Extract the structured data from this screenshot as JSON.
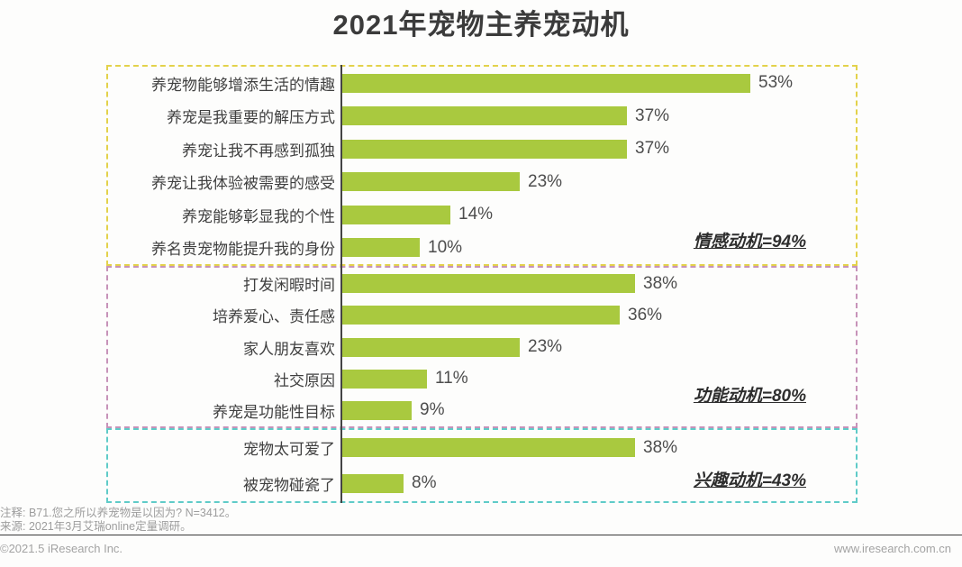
{
  "title": "2021年宠物主养宠动机",
  "chart_data": {
    "type": "bar",
    "orientation": "horizontal",
    "unit": "%",
    "xlim": [
      0,
      60
    ],
    "bar_color": "#a9c93f",
    "axis_color": "#444444",
    "groups": [
      {
        "name": "情感动机",
        "summary": "情感动机=94%",
        "border_color": "#e3d24b",
        "categories": [
          "养宠物能够增添生活的情趣",
          "养宠是我重要的解压方式",
          "养宠让我不再感到孤独",
          "养宠让我体验被需要的感受",
          "养宠能够彰显我的个性",
          "养名贵宠物能提升我的身份"
        ],
        "values": [
          53,
          37,
          37,
          23,
          14,
          10
        ],
        "value_labels": [
          "53%",
          "37%",
          "37%",
          "23%",
          "14%",
          "10%"
        ]
      },
      {
        "name": "功能动机",
        "summary": "功能动机=80%",
        "border_color": "#c793b9",
        "categories": [
          "打发闲暇时间",
          "培养爱心、责任感",
          "家人朋友喜欢",
          "社交原因",
          "养宠是功能性目标"
        ],
        "values": [
          38,
          36,
          23,
          11,
          9
        ],
        "value_labels": [
          "38%",
          "36%",
          "23%",
          "11%",
          "9%"
        ]
      },
      {
        "name": "兴趣动机",
        "summary": "兴趣动机=43%",
        "border_color": "#5fcbc8",
        "categories": [
          "宠物太可爱了",
          "被宠物碰瓷了"
        ],
        "values": [
          38,
          8
        ],
        "value_labels": [
          "38%",
          "8%"
        ]
      }
    ]
  },
  "footnotes": {
    "note": "注释: B71.您之所以养宠物是以因为? N=3412。",
    "source": "来源: 2021年3月艾瑞online定量调研。"
  },
  "footer": {
    "copyright": "©2021.5 iResearch Inc.",
    "website": "www.iresearch.com.cn"
  }
}
